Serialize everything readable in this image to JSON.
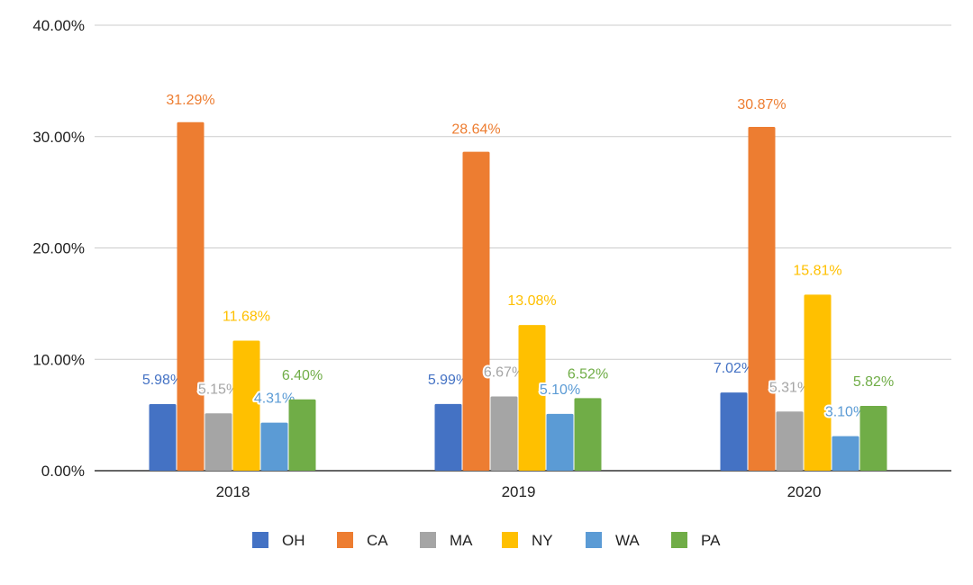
{
  "chart_data": {
    "type": "bar",
    "title": "",
    "xlabel": "",
    "ylabel": "",
    "categories": [
      "2018",
      "2019",
      "2020"
    ],
    "ylim": [
      0,
      40
    ],
    "yticks": [
      0,
      10,
      20,
      30,
      40
    ],
    "ytick_labels": [
      "0.00%",
      "10.00%",
      "20.00%",
      "30.00%",
      "40.00%"
    ],
    "grid": true,
    "legend_position": "bottom",
    "series": [
      {
        "name": "OH",
        "color": "#4472c4",
        "values": [
          5.98,
          5.99,
          7.02
        ],
        "labels": [
          "5.98%",
          "5.99%",
          "7.02%"
        ]
      },
      {
        "name": "CA",
        "color": "#ed7d31",
        "values": [
          31.29,
          28.64,
          30.87
        ],
        "labels": [
          "31.29%",
          "28.64%",
          "30.87%"
        ]
      },
      {
        "name": "MA",
        "color": "#a5a5a5",
        "values": [
          5.15,
          6.67,
          5.31
        ],
        "labels": [
          "5.15%",
          "6.67%",
          "5.31%"
        ]
      },
      {
        "name": "NY",
        "color": "#ffc000",
        "values": [
          11.68,
          13.08,
          15.81
        ],
        "labels": [
          "11.68%",
          "13.08%",
          "15.81%"
        ]
      },
      {
        "name": "WA",
        "color": "#5b9bd5",
        "values": [
          4.31,
          5.1,
          3.1
        ],
        "labels": [
          "4.31%",
          "5.10%",
          "3.10%"
        ]
      },
      {
        "name": "PA",
        "color": "#70ad47",
        "values": [
          6.4,
          6.52,
          5.82
        ],
        "labels": [
          "6.40%",
          "6.52%",
          "5.82%"
        ]
      }
    ]
  }
}
